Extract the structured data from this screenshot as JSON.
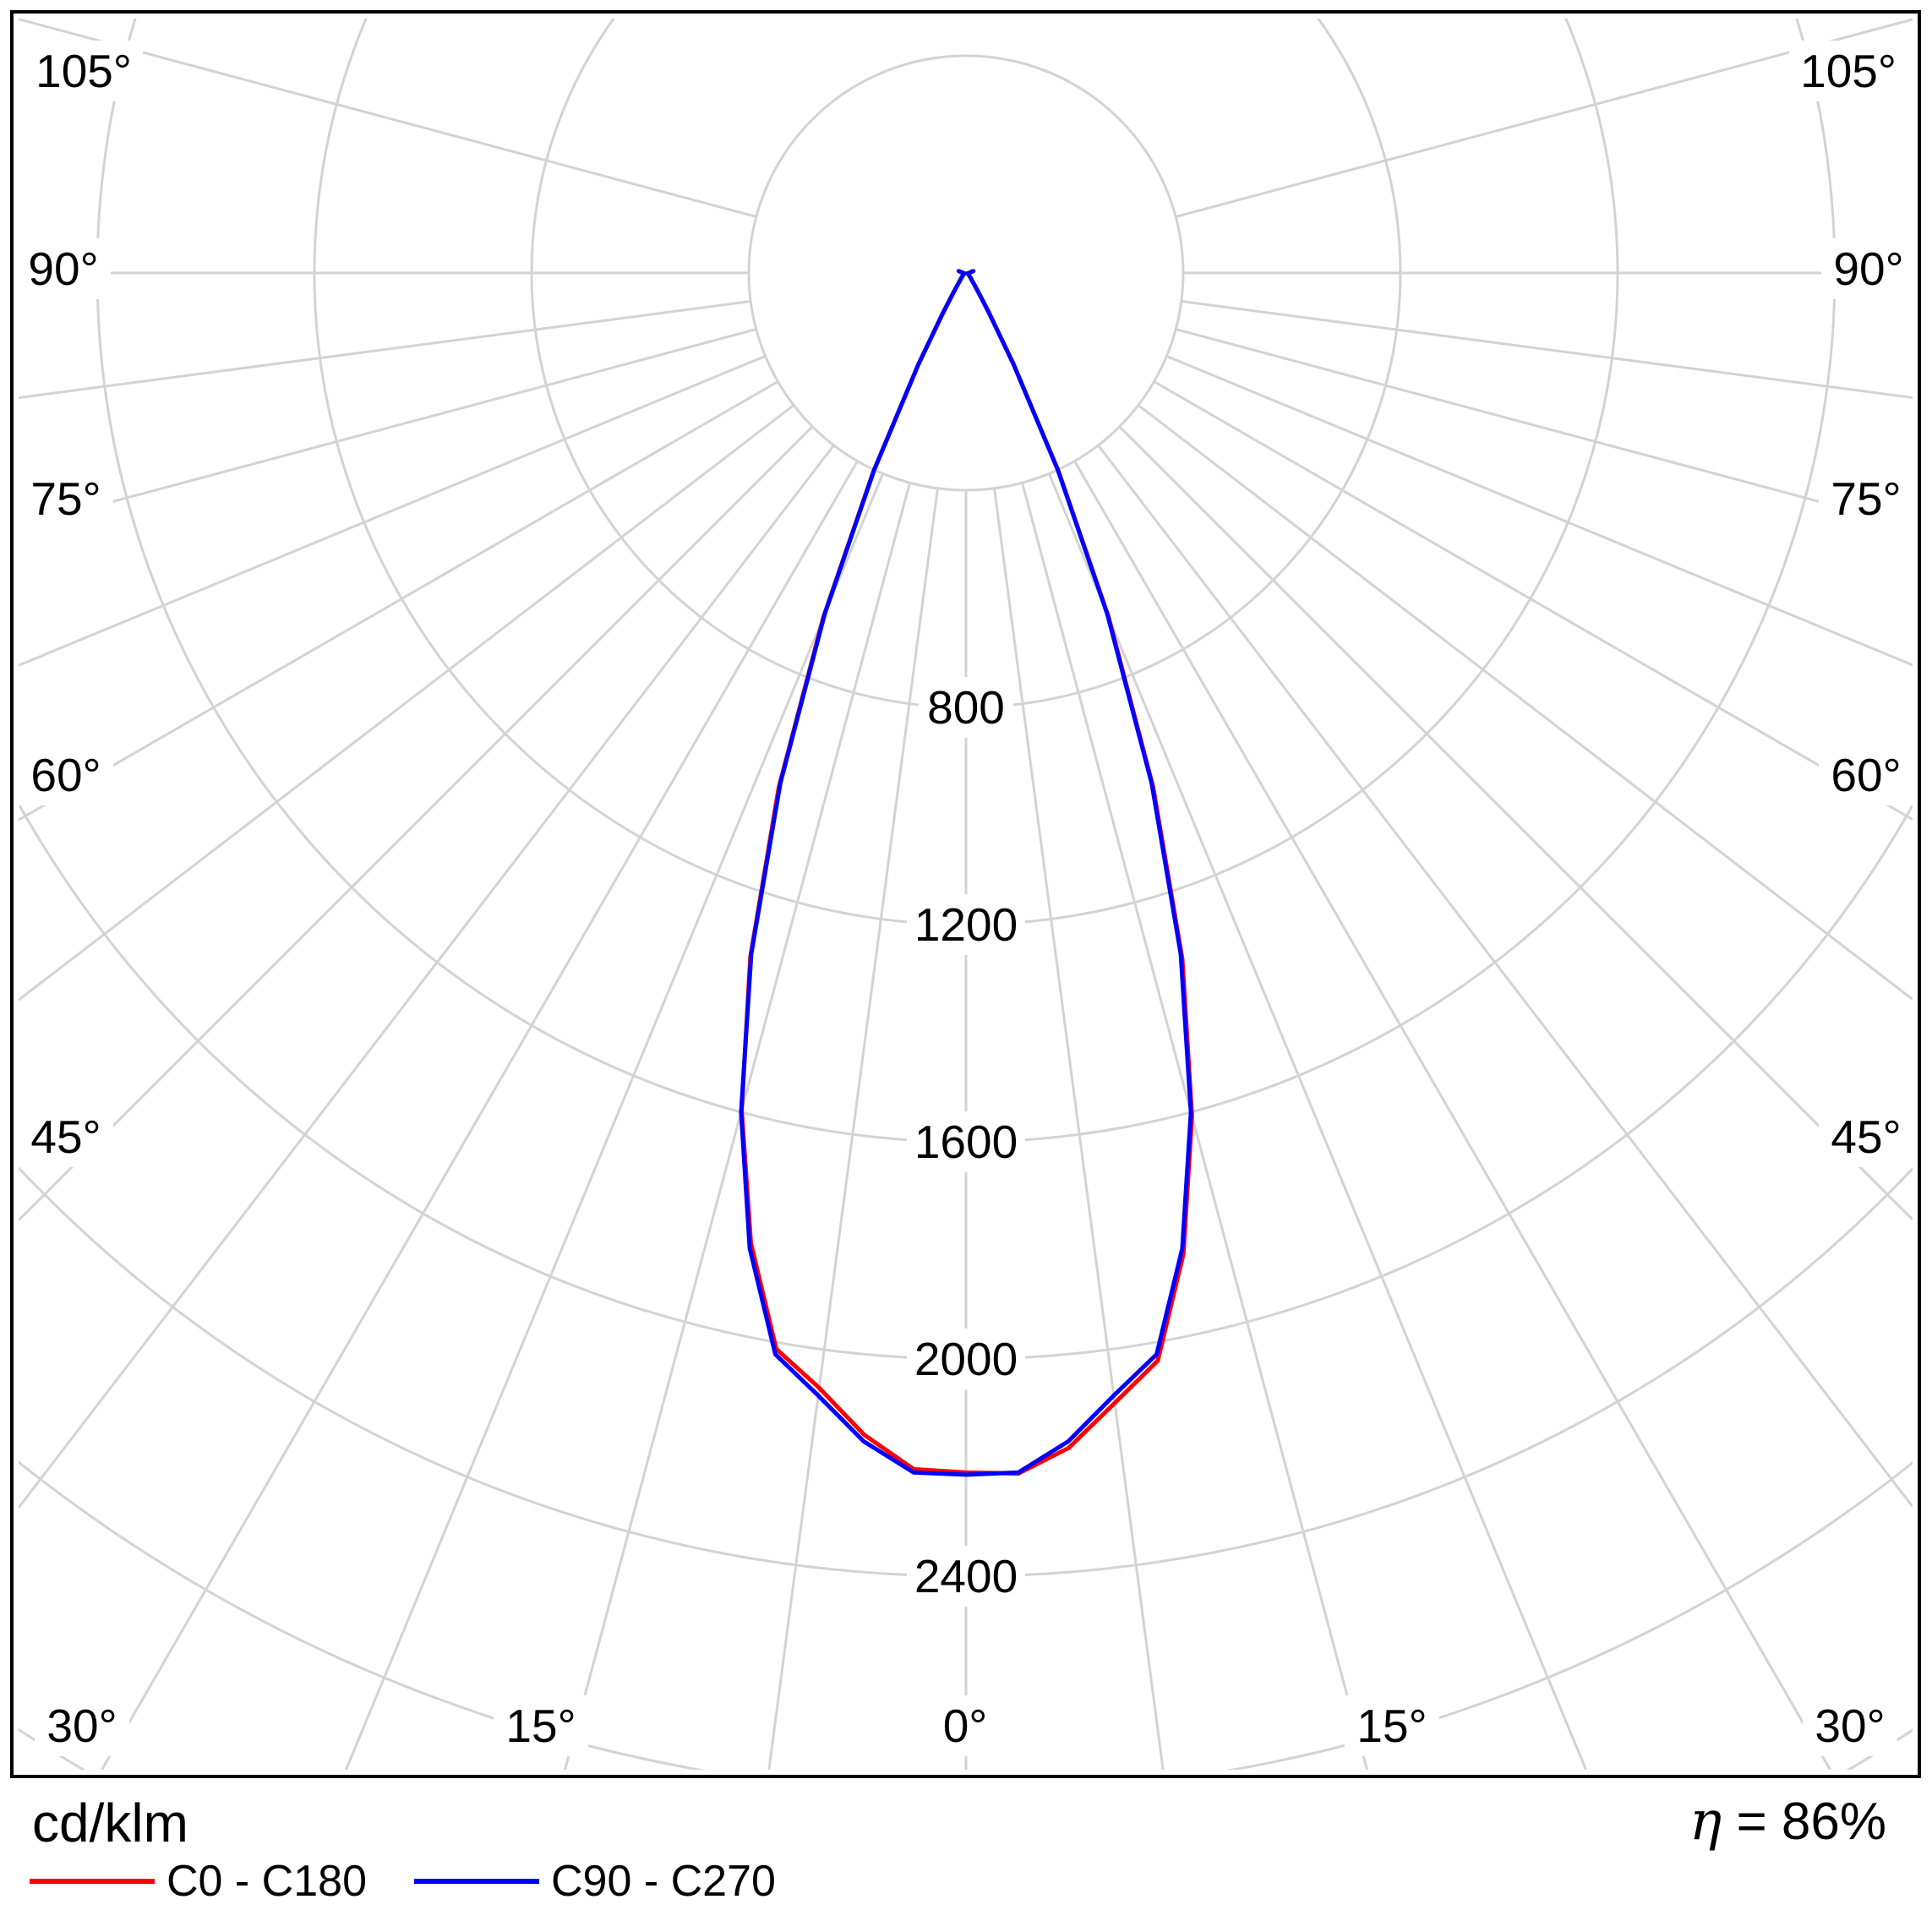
{
  "unit_label": "cd/klm",
  "efficiency": {
    "symbol": "η",
    "text": "= 86%"
  },
  "legend": [
    {
      "label": "C0 - C180",
      "color": "#ff0000"
    },
    {
      "label": "C90 - C270",
      "color": "#0000ff"
    }
  ],
  "chart_data": {
    "type": "line",
    "subtype": "polar-photometric-intensity-distribution",
    "unit": "cd/klm",
    "efficiency_percent": 86,
    "angle_tick_labels_deg": [
      0,
      15,
      30,
      45,
      60,
      75,
      90,
      105
    ],
    "ring_step": 400,
    "labeled_rings": [
      800,
      1200,
      1600,
      2000,
      2400
    ],
    "max_ring": 3200,
    "grid_color": "#d3d3d3",
    "axis_color": "#000000",
    "legend_position": "bottom-left",
    "series": [
      {
        "name": "C0 - C180",
        "color": "#ff0000",
        "gamma_deg": [
          0,
          2.5,
          5,
          7.5,
          10,
          12.5,
          15,
          17.5,
          20,
          22.5,
          25,
          27.5,
          30,
          32.5,
          35,
          40,
          45,
          50,
          55,
          60,
          70,
          80,
          85,
          90,
          97.5,
          105
        ],
        "right_cd_per_klm": [
          2209,
          2213,
          2172,
          2099,
          2034,
          1850,
          1608,
          1325,
          1008,
          686,
          404,
          190,
          85,
          45,
          28,
          16,
          11,
          8,
          6,
          5,
          4,
          3,
          4,
          5,
          7,
          12
        ],
        "left_cd_per_klm": [
          2209,
          2205,
          2148,
          2071,
          2012,
          1830,
          1596,
          1321,
          1008,
          686,
          404,
          190,
          85,
          45,
          28,
          16,
          11,
          8,
          6,
          5,
          4,
          3,
          4,
          5,
          7,
          12
        ]
      },
      {
        "name": "C90 - C270",
        "color": "#0000ff",
        "gamma_deg": [
          0,
          2.5,
          5,
          7.5,
          10,
          12.5,
          15,
          17.5,
          20,
          22.5,
          25,
          27.5,
          30,
          32.5,
          35,
          40,
          45,
          50,
          55,
          60,
          70,
          80,
          85,
          90,
          97.5,
          105
        ],
        "right_cd_per_klm": [
          2213,
          2211,
          2160,
          2085,
          2022,
          1840,
          1600,
          1315,
          1000,
          680,
          400,
          190,
          85,
          45,
          28,
          16,
          11,
          8,
          6,
          5,
          4,
          3,
          4,
          6,
          8,
          14
        ],
        "left_cd_per_klm": [
          2213,
          2211,
          2160,
          2085,
          2022,
          1840,
          1600,
          1315,
          1000,
          680,
          400,
          190,
          85,
          45,
          28,
          16,
          11,
          8,
          6,
          5,
          4,
          3,
          4,
          6,
          8,
          14
        ]
      }
    ]
  }
}
